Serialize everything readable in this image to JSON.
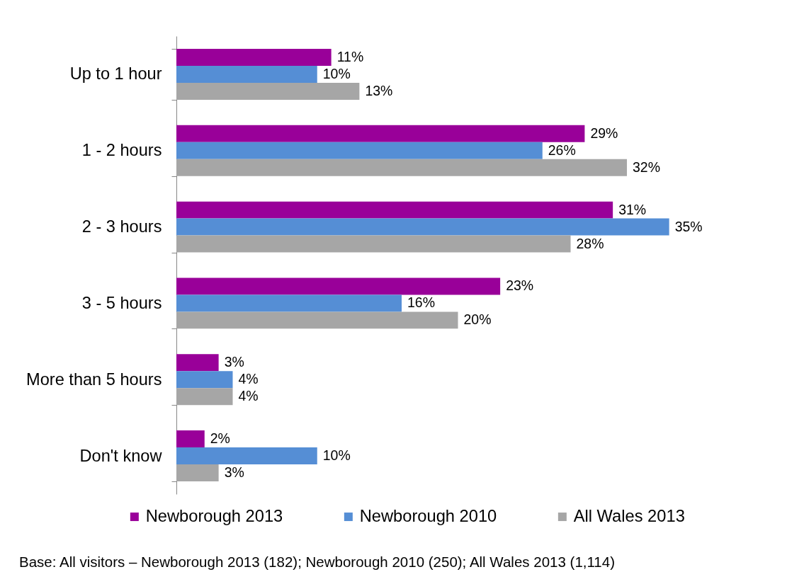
{
  "chart_data": {
    "type": "bar",
    "orientation": "horizontal",
    "categories": [
      "Up to 1 hour",
      "1 - 2 hours",
      "2 - 3 hours",
      "3 - 5 hours",
      "More than 5 hours",
      "Don't know"
    ],
    "series": [
      {
        "name": "Newborough 2013",
        "color": "#990099",
        "values": [
          11,
          29,
          31,
          23,
          3,
          2
        ],
        "value_labels": [
          "11%",
          "29%",
          "31%",
          "23%",
          "3%",
          "2%"
        ]
      },
      {
        "name": "Newborough 2010",
        "color": "#558ed5",
        "values": [
          10,
          26,
          35,
          16,
          4,
          10
        ],
        "value_labels": [
          "10%",
          "26%",
          "35%",
          "16%",
          "4%",
          "10%"
        ]
      },
      {
        "name": "All Wales 2013",
        "color": "#a6a6a6",
        "values": [
          13,
          32,
          28,
          20,
          4,
          3
        ],
        "value_labels": [
          "13%",
          "32%",
          "28%",
          "20%",
          "4%",
          "3%"
        ]
      }
    ],
    "legend": "bottom",
    "tick_labels": "y",
    "annotations": [
      "Base: All visitors – Newborough 2013 (182); Newborough 2010 (250); All Wales 2013 (1,114)"
    ]
  }
}
